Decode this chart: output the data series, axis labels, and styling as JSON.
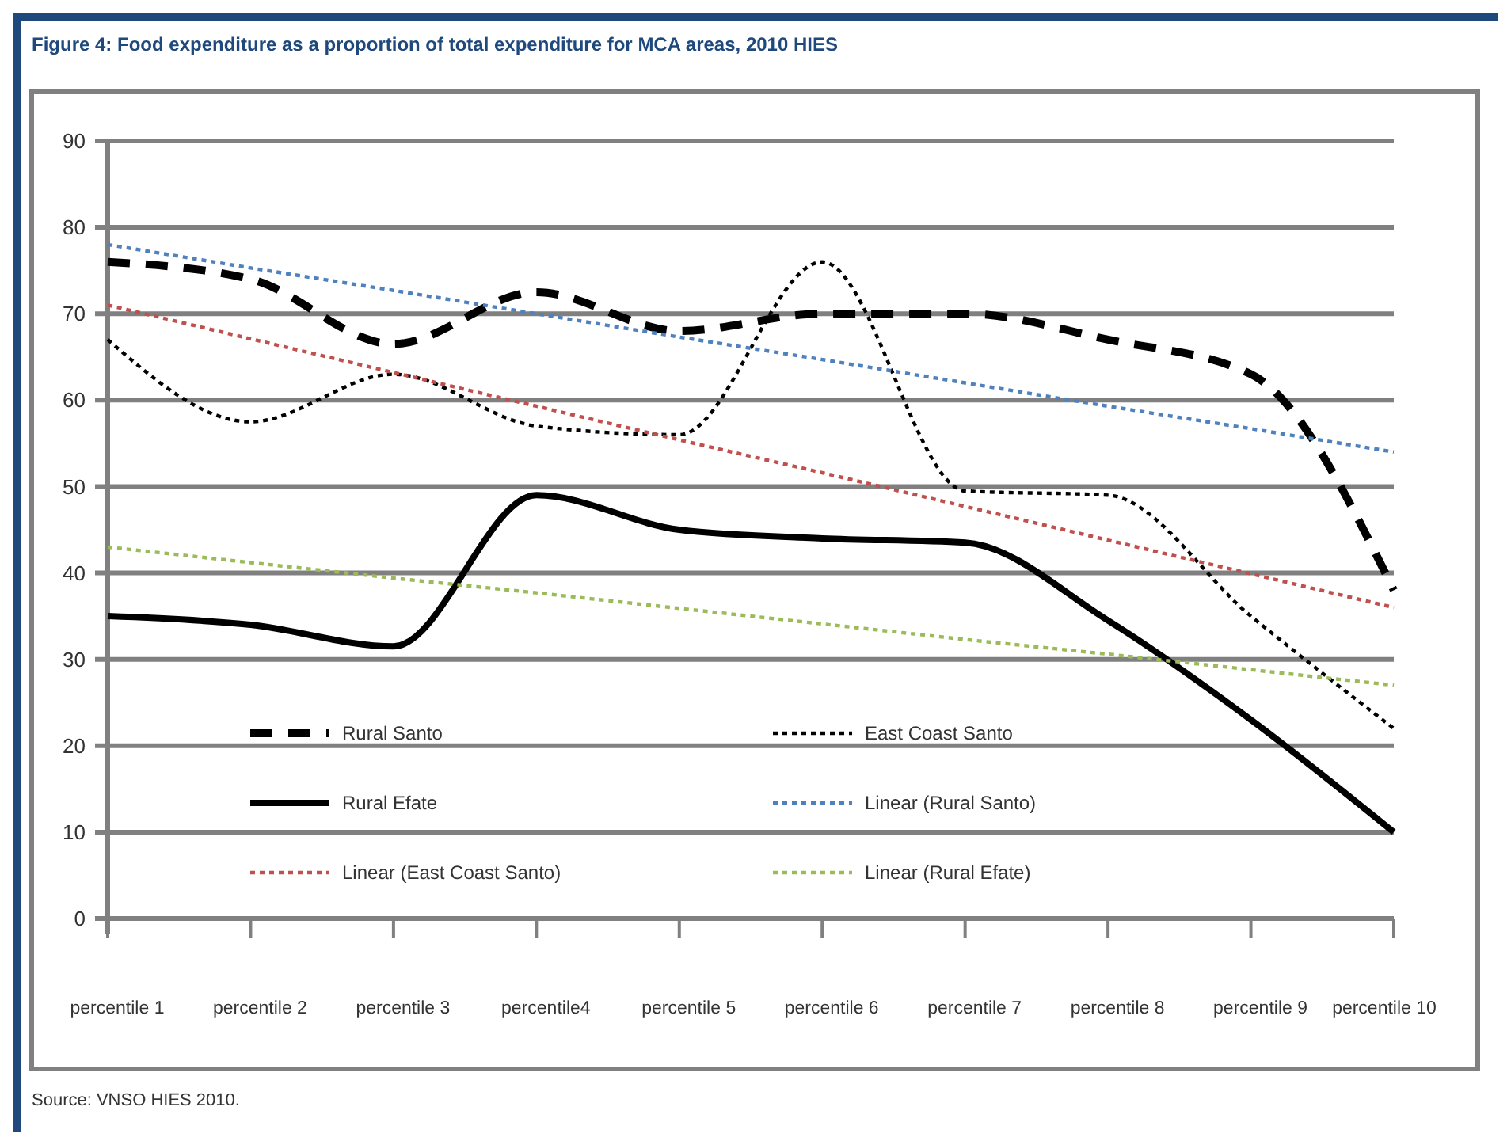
{
  "chart_data": {
    "type": "line",
    "title": "Figure 4: Food expenditure as a proportion of total expenditure for MCA areas, 2010 HIES",
    "categories": [
      "percentile 1",
      "percentile 2",
      "percentile 3",
      "percentile4",
      "percentile 5",
      "percentile 6",
      "percentile 7",
      "percentile 8",
      "percentile 9",
      "percentile 10"
    ],
    "series": [
      {
        "name": "Rural Santo",
        "color": "#000000",
        "line_style": "dashed",
        "values": [
          76,
          74,
          66.5,
          72.5,
          68,
          70,
          70,
          67,
          63,
          38
        ]
      },
      {
        "name": "East Coast Santo",
        "color": "#000000",
        "line_style": "dotted",
        "values": [
          67,
          57.5,
          63,
          57,
          56,
          76,
          49.5,
          49,
          35,
          22
        ]
      },
      {
        "name": "Rural Efate",
        "color": "#000000",
        "line_style": "solid",
        "values": [
          35,
          34,
          31.5,
          49,
          45,
          44,
          43.5,
          34.5,
          23,
          10
        ]
      },
      {
        "name": "Linear (Rural Santo)",
        "color": "#4f81bd",
        "line_style": "dotted",
        "values": [
          78,
          75.3,
          72.7,
          70,
          67.3,
          64.7,
          62,
          59.3,
          56.7,
          54
        ]
      },
      {
        "name": "Linear (East Coast Santo)",
        "color": "#c0504d",
        "line_style": "dotted",
        "values": [
          71,
          67.1,
          63.2,
          59.3,
          55.4,
          51.6,
          47.7,
          43.8,
          39.9,
          36
        ]
      },
      {
        "name": "Linear (Rural Efate)",
        "color": "#9bbb59",
        "line_style": "dotted",
        "values": [
          43,
          41.2,
          39.4,
          37.7,
          35.9,
          34.1,
          32.3,
          30.6,
          28.8,
          27
        ]
      }
    ],
    "ylim": [
      0,
      90
    ],
    "yticks": [
      0,
      10,
      20,
      30,
      40,
      50,
      60,
      70,
      80,
      90
    ],
    "grid": "y",
    "legend": "bottom",
    "marker": "none",
    "annotations": [
      "Source: VNSO HIES 2010."
    ]
  }
}
